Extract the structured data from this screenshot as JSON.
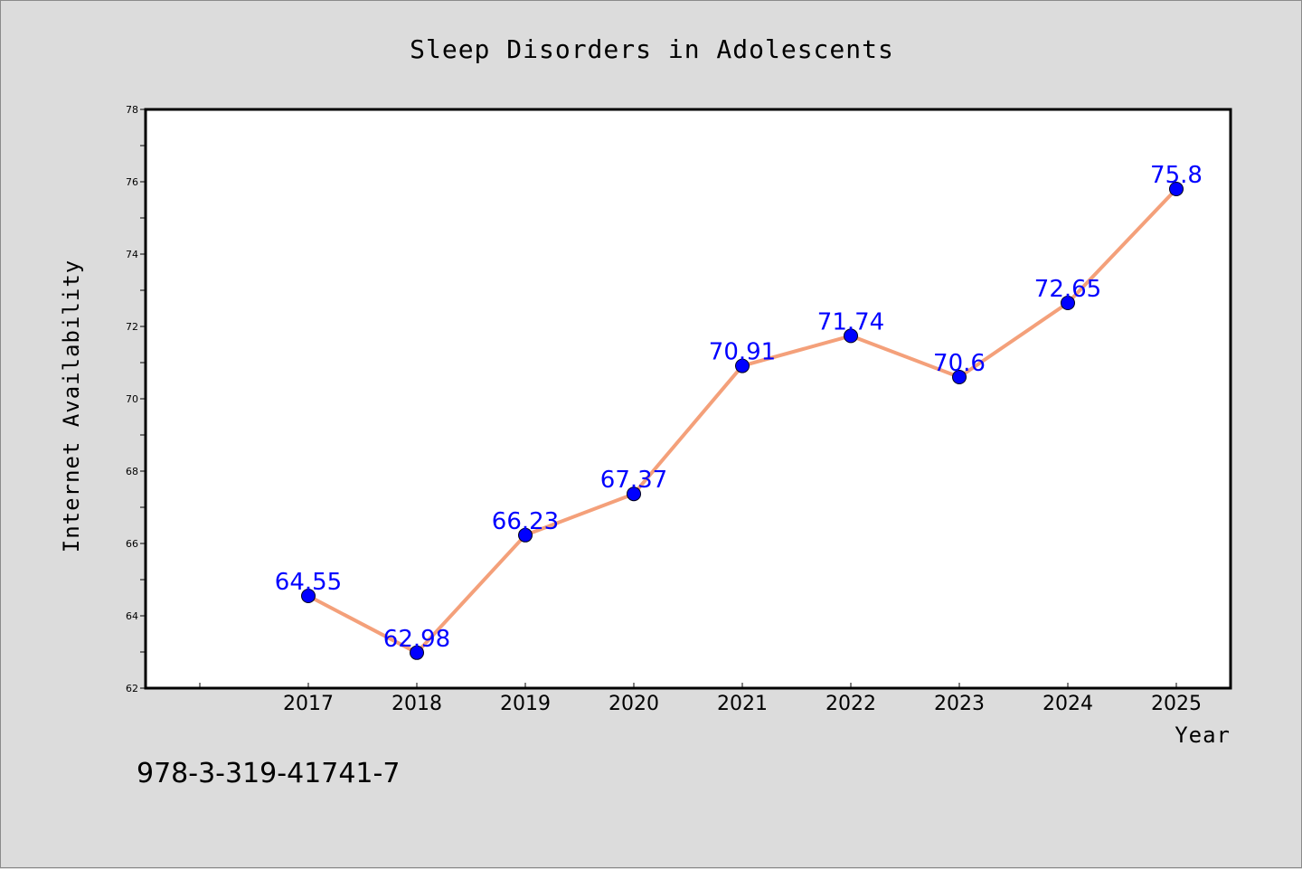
{
  "chart_data": {
    "type": "line",
    "title": "Sleep Disorders in Adolescents",
    "xlabel": "Year",
    "ylabel": "Internet Availability",
    "categories": [
      "2017",
      "2018",
      "2019",
      "2020",
      "2021",
      "2022",
      "2023",
      "2024",
      "2025"
    ],
    "series": [
      {
        "values": [
          64.55,
          62.98,
          66.23,
          67.37,
          70.91,
          71.74,
          70.6,
          72.65,
          75.8
        ],
        "data_labels": [
          "64.55",
          "62.98",
          "66.23",
          "67.37",
          "70.91",
          "71.74",
          "70.6",
          "72.65",
          "75.8"
        ],
        "line_color": "#f4a07a",
        "marker_color": "#0000ff"
      }
    ],
    "ylim": [
      62,
      78
    ],
    "yticks": [
      "62",
      "64",
      "66",
      "68",
      "70",
      "72",
      "74",
      "76",
      "78"
    ],
    "grid": false,
    "legend": "none"
  },
  "footer": {
    "text": "978-3-319-41741-7"
  },
  "colors": {
    "background": "#dcdcdc",
    "plot_background": "#ffffff",
    "line": "#f4a07a",
    "marker": "#0000ff",
    "data_label": "#0000ff"
  }
}
